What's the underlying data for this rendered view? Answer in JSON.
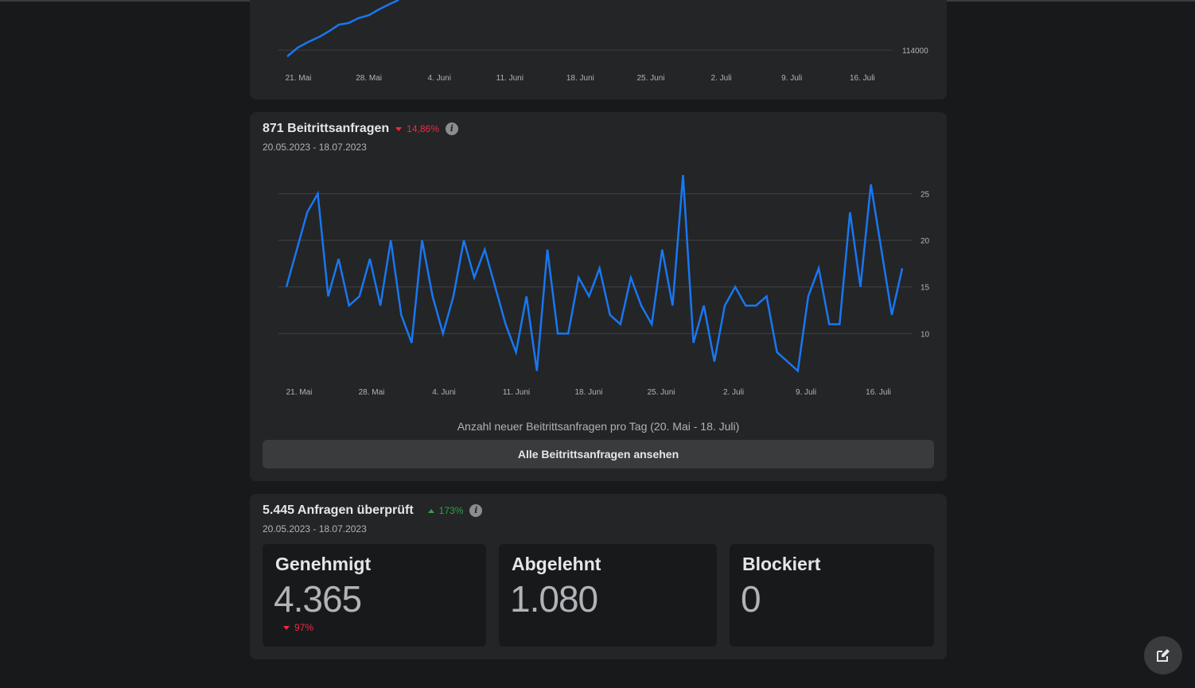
{
  "top_chart": {
    "y_tick": "114000",
    "x_ticks": [
      "21. Mai",
      "28. Mai",
      "4. Juni",
      "11. Juni",
      "18. Juni",
      "25. Juni",
      "2. Juli",
      "9. Juli",
      "16. Juli"
    ],
    "line_color": "#1877f2"
  },
  "requests_card": {
    "title": "871 Beitrittsanfragen",
    "trend": "14,86%",
    "trend_direction": "down",
    "date_range": "20.05.2023 - 18.07.2023",
    "caption": "Anzahl neuer Beitrittsanfragen pro Tag (20. Mai - 18. Juli)",
    "button_label": "Alle Beitrittsanfragen ansehen"
  },
  "chart_data": {
    "type": "line",
    "x_ticks": [
      "21. Mai",
      "28. Mai",
      "4. Juni",
      "11. Juni",
      "18. Juni",
      "25. Juni",
      "2. Juli",
      "9. Juli",
      "16. Juli"
    ],
    "y_ticks": [
      "25",
      "20",
      "15",
      "10"
    ],
    "ylim": [
      5,
      27
    ],
    "grid": true,
    "series": [
      {
        "color": "#1877f2",
        "values": [
          15,
          19,
          23,
          25,
          14,
          18,
          13,
          14,
          18,
          13,
          20,
          12,
          9,
          20,
          14,
          10,
          14,
          20,
          16,
          19,
          15,
          11,
          8,
          14,
          6,
          19,
          10,
          10,
          16,
          14,
          17,
          12,
          11,
          16,
          13,
          11,
          19,
          13,
          27,
          9,
          13,
          7,
          13,
          15,
          13,
          13,
          14,
          8,
          7,
          6,
          14,
          17,
          11,
          11,
          23,
          15,
          26,
          19,
          12,
          17
        ]
      }
    ]
  },
  "reviewed_card": {
    "title": "5.445 Anfragen überprüft",
    "trend": "173%",
    "trend_direction": "up",
    "date_range": "20.05.2023 - 18.07.2023",
    "stats": [
      {
        "label": "Genehmigt",
        "value": "4.365",
        "trend": "97%"
      },
      {
        "label": "Abgelehnt",
        "value": "1.080"
      },
      {
        "label": "Blockiert",
        "value": "0"
      }
    ]
  }
}
